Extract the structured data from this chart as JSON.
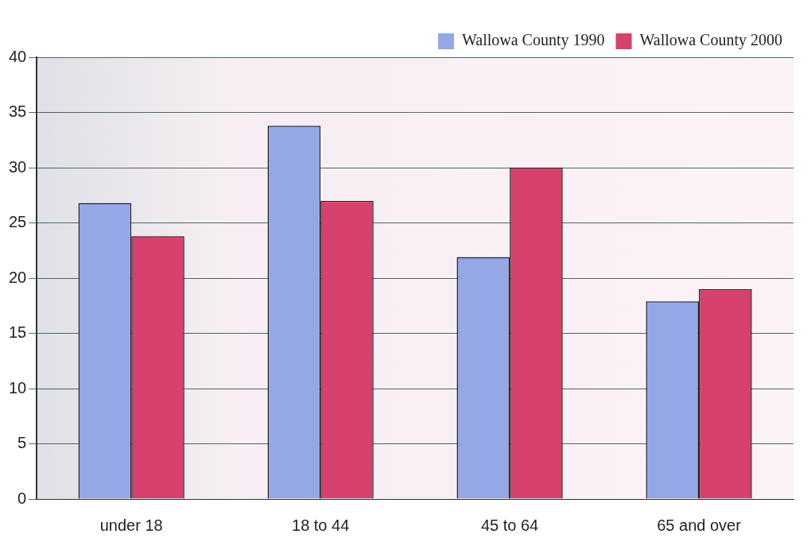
{
  "chart_data": {
    "type": "bar",
    "categories": [
      "under 18",
      "18 to 44",
      "45 to 64",
      "65 and over"
    ],
    "series": [
      {
        "name": "Wallowa County 1990",
        "color": "#94a8e8",
        "values": [
          26.8,
          33.8,
          21.9,
          17.9
        ]
      },
      {
        "name": "Wallowa County 2000",
        "color": "#d8416b",
        "values": [
          23.8,
          27.0,
          30.0,
          19.0
        ]
      }
    ],
    "ylim": [
      0,
      40
    ],
    "yticks": [
      0,
      5,
      10,
      15,
      20,
      25,
      30,
      35,
      40
    ],
    "grid": "y",
    "legend": "top right"
  }
}
